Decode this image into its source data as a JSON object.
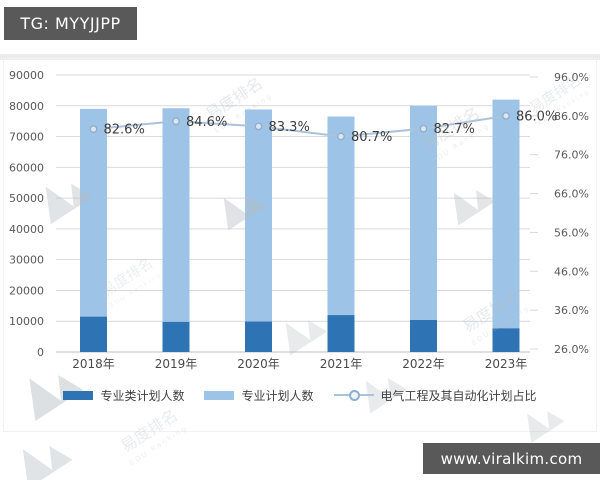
{
  "header_badge": {
    "text": "TG: MYYJJPP"
  },
  "footer_badge": {
    "text": "www.viralkim.com"
  },
  "watermark": {
    "brand": "易度排名",
    "brand_en": "EDU Ranking"
  },
  "chart_data": {
    "type": "bar",
    "subtype": "stacked-bars-with-percentage-line",
    "title": "",
    "categories": [
      "2018年",
      "2019年",
      "2020年",
      "2021年",
      "2022年",
      "2023年"
    ],
    "series": [
      {
        "name": "专业类计划人数",
        "type": "bar",
        "color": "#2e74b5",
        "values": [
          11500,
          9800,
          9900,
          12000,
          10400,
          7700
        ]
      },
      {
        "name": "专业计划人数",
        "type": "bar",
        "color": "#9dc3e6",
        "values": [
          67500,
          69400,
          68900,
          64500,
          69600,
          74300
        ]
      },
      {
        "name": "电气工程及其自动化计划占比",
        "type": "line",
        "axis": "right",
        "color": "#aac3dc",
        "marker_color": "#8fafd1",
        "values": [
          82.6,
          84.6,
          83.3,
          80.7,
          82.7,
          86.0
        ],
        "labels": [
          "82.6%",
          "84.6%",
          "83.3%",
          "80.7%",
          "82.7%",
          "86.0%"
        ]
      }
    ],
    "bar_totals": [
      79000,
      79200,
      78800,
      76500,
      80000,
      82000
    ],
    "left_axis": {
      "min": 0,
      "max": 90000,
      "step": 10000,
      "ticks": [
        "0",
        "10000",
        "20000",
        "30000",
        "40000",
        "50000",
        "60000",
        "70000",
        "80000",
        "90000"
      ]
    },
    "right_axis": {
      "min": 26,
      "max": 96,
      "step": 10,
      "ticks": [
        "26.0%",
        "36.0%",
        "46.0%",
        "56.0%",
        "66.0%",
        "76.0%",
        "86.0%",
        "96.0%"
      ]
    },
    "legend": [
      "专业类计划人数",
      "专业计划人数",
      "电气工程及其自动化计划占比"
    ],
    "grid": true,
    "legend_position": "bottom"
  }
}
